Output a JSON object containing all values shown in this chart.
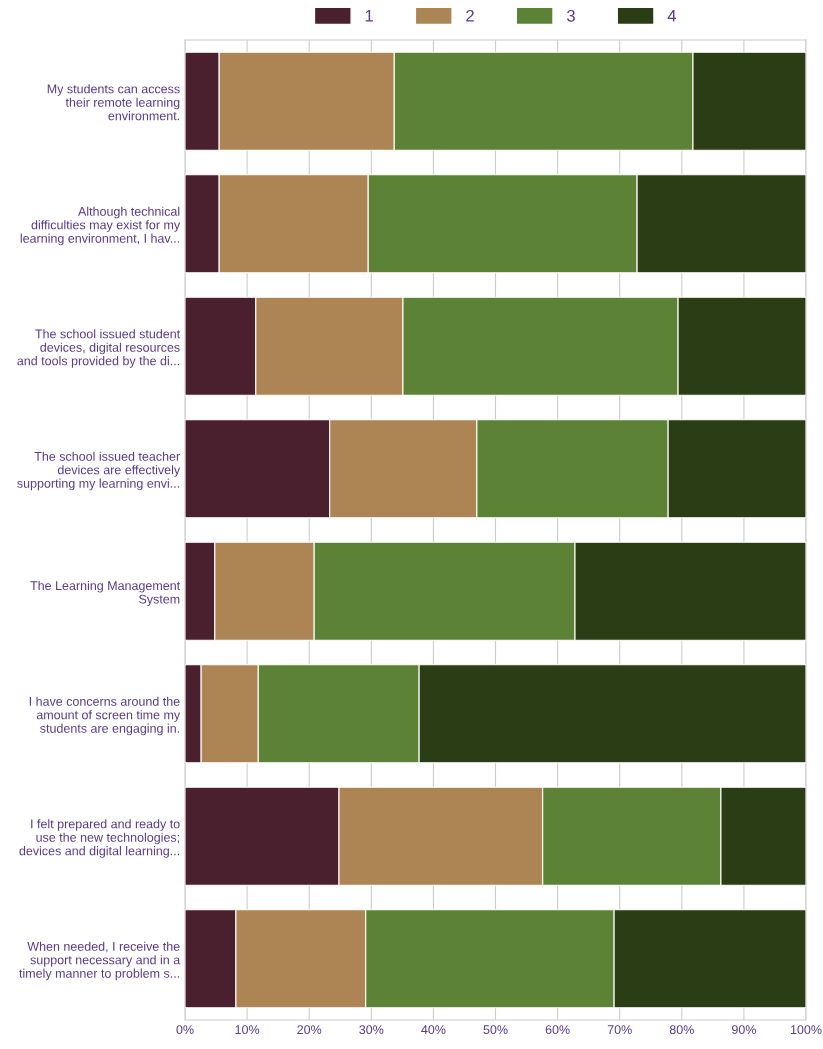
{
  "chart_data": {
    "type": "bar",
    "orientation": "horizontal",
    "stacked": true,
    "categories": [
      "My students can access\ntheir remote learning\nenvironment.",
      "Although technical\ndifficulties may exist for my\nlearning environment, I hav...",
      "The school issued student\ndevices, digital resources\nand tools provided by the di...",
      "The school issued teacher\ndevices are effectively\nsupporting my learning envi...",
      "The Learning Management\nSystem",
      "I have concerns around the\namount of screen time my\nstudents are engaging in.",
      "I felt prepared and ready to\nuse the new technologies;\ndevices and digital learning...",
      "When needed, I receive the\nsupport necessary and in a\ntimely manner to problem s..."
    ],
    "series": [
      {
        "name": "1",
        "color": "#4a1f2e",
        "values": [
          5.5,
          5.5,
          11.4,
          23.3,
          4.8,
          2.6,
          24.8,
          8.2
        ]
      },
      {
        "name": "2",
        "color": "#ad8453",
        "values": [
          28.2,
          24.0,
          23.7,
          23.7,
          16.0,
          9.2,
          32.8,
          20.9
        ]
      },
      {
        "name": "3",
        "color": "#5b8235",
        "values": [
          48.1,
          43.3,
          44.3,
          30.8,
          42.0,
          25.9,
          28.7,
          40.0
        ]
      },
      {
        "name": "4",
        "color": "#2b3d14",
        "values": [
          18.2,
          27.2,
          20.6,
          22.2,
          37.2,
          62.3,
          13.7,
          30.9
        ]
      }
    ],
    "xlim": [
      0,
      100
    ],
    "xticks": [
      {
        "value": 0,
        "label": "0%"
      },
      {
        "value": 10,
        "label": "10%"
      },
      {
        "value": 20,
        "label": "20%"
      },
      {
        "value": 30,
        "label": "30%"
      },
      {
        "value": 40,
        "label": "40%"
      },
      {
        "value": 50,
        "label": "50%"
      },
      {
        "value": 60,
        "label": "60%"
      },
      {
        "value": 70,
        "label": "70%"
      },
      {
        "value": 80,
        "label": "80%"
      },
      {
        "value": 90,
        "label": "90%"
      },
      {
        "value": 100,
        "label": "100%"
      }
    ],
    "grid": "x",
    "legend": "top"
  }
}
